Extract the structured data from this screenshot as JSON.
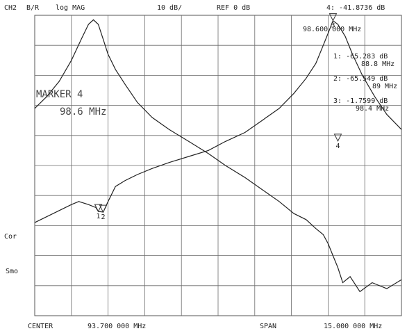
{
  "header": {
    "channel": "CH2",
    "measurement": "B/R",
    "format": "log MAG",
    "scale": "10 dB/",
    "reference": "REF 0 dB",
    "active_marker_value": "4: -41.8736 dB",
    "active_marker_freq": "98.600 000 MHz"
  },
  "markers": [
    {
      "id": "1",
      "value": "-65.283 dB",
      "freq": "88.8 MHz"
    },
    {
      "id": "2",
      "value": "-65.549 dB",
      "freq": "89 MHz"
    },
    {
      "id": "3",
      "value": "-1.7599 dB",
      "freq": "98.4 MHz"
    }
  ],
  "big_marker": {
    "title": "MARKER 4",
    "freq": "98.6 MHz"
  },
  "side_labels": {
    "cor": "Cor",
    "smo": "Smo"
  },
  "footer": {
    "center_label": "CENTER",
    "center_value": "93.700 000 MHz",
    "span_label": "SPAN",
    "span_value": "15.000 000 MHz"
  },
  "chart_data": {
    "type": "line",
    "x_unit": "MHz",
    "x_center": 93.7,
    "x_span": 15.0,
    "xlim": [
      86.2,
      101.2
    ],
    "ylim": [
      -100,
      0
    ],
    "y_unit": "dB",
    "y_scale_per_div": 10,
    "divisions": {
      "x": 10,
      "y": 10
    },
    "grid": true,
    "series": [
      {
        "x": [
          86.2,
          86.7,
          87.2,
          87.7,
          88.1,
          88.4,
          88.6,
          88.8,
          89.0,
          89.2,
          89.5,
          89.9,
          90.4,
          91.0,
          91.7,
          92.5,
          93.3,
          94.0,
          94.8,
          95.5,
          96.2,
          96.8,
          97.3,
          97.7,
          98.0,
          98.2,
          98.4,
          98.6,
          98.8,
          99.1,
          99.5,
          100.0,
          100.6,
          101.2
        ],
        "y": [
          -31,
          -27,
          -22,
          -15,
          -8,
          -3,
          -1.5,
          -3,
          -8,
          -13,
          -18,
          -23,
          -29,
          -34,
          -38,
          -42,
          -46,
          -50,
          -54,
          -58,
          -62,
          -66,
          -68,
          -71,
          -73,
          -76,
          -80,
          -84,
          -89,
          -87,
          -92,
          -89,
          -91,
          -88
        ]
      },
      {
        "x": [
          86.2,
          86.7,
          87.2,
          87.7,
          88.0,
          88.4,
          88.7,
          88.8,
          88.9,
          89.0,
          89.2,
          89.5,
          89.9,
          90.4,
          91.0,
          91.7,
          92.5,
          93.3,
          94.0,
          94.8,
          95.5,
          96.2,
          96.8,
          97.3,
          97.7,
          98.0,
          98.2,
          98.4,
          98.6,
          98.9,
          99.2,
          99.6,
          100.1,
          100.6,
          101.2
        ],
        "y": [
          -69,
          -67,
          -65,
          -63,
          -62,
          -63,
          -64,
          -65.3,
          -65.4,
          -65.5,
          -62,
          -57,
          -55,
          -53,
          -51,
          -49,
          -47,
          -45,
          -42,
          -39,
          -35,
          -31,
          -26,
          -21,
          -16,
          -10,
          -6,
          -1.8,
          -3,
          -7,
          -13,
          -20,
          -27,
          -33,
          -38
        ]
      }
    ],
    "markers": [
      {
        "id": "1",
        "x": 88.8,
        "y": -65.283
      },
      {
        "id": "2",
        "x": 89.0,
        "y": -65.549
      },
      {
        "id": "3",
        "x": 98.4,
        "y": -1.7599
      },
      {
        "id": "4",
        "x": 98.6,
        "y": -41.8736
      }
    ]
  }
}
